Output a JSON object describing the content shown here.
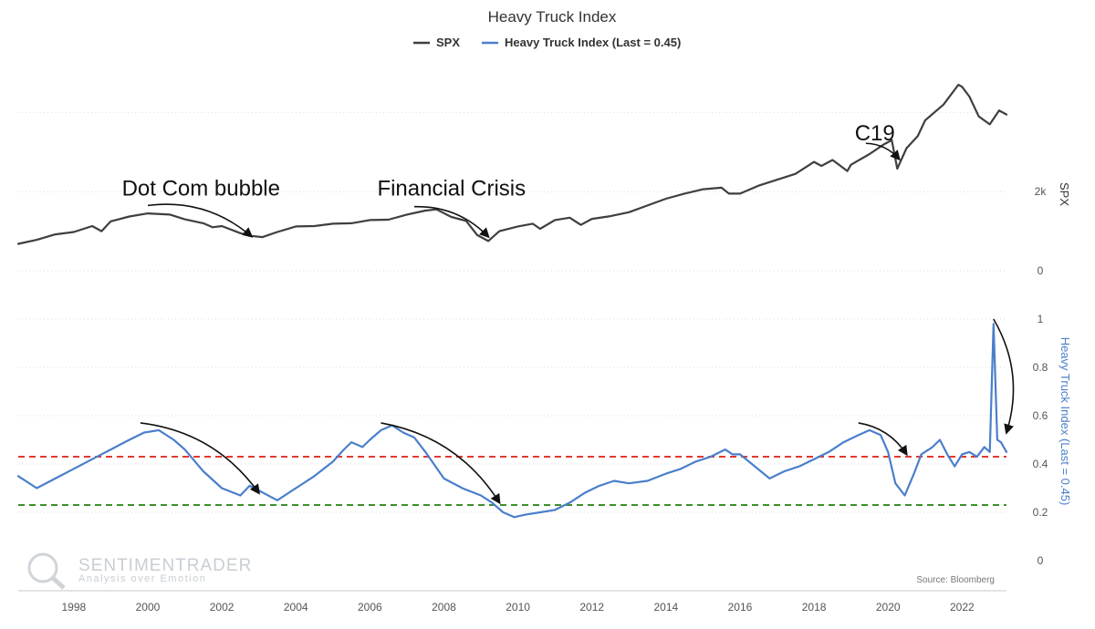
{
  "chart_data": {
    "type": "line",
    "title": "Heavy Truck Index",
    "legend": {
      "placement": "top-center",
      "entries": [
        "SPX",
        "Heavy Truck Index (Last = 0.45)"
      ]
    },
    "x_range": [
      1996.5,
      2023.2
    ],
    "x_ticks": [
      "1998",
      "2000",
      "2002",
      "2004",
      "2006",
      "2008",
      "2010",
      "2012",
      "2014",
      "2016",
      "2018",
      "2020",
      "2022"
    ],
    "panels": [
      {
        "ylabel": "SPX",
        "y_range": [
          0,
          5000
        ],
        "y_ticks": [
          {
            "value": 0,
            "label": "0"
          },
          {
            "value": 2000,
            "label": "2k"
          }
        ],
        "grid_values": [
          0,
          2000,
          4000
        ]
      },
      {
        "ylabel": "Heavy Truck Index (Last = 0.45)",
        "y_range": [
          0,
          1
        ],
        "y_ticks": [
          {
            "value": 0,
            "label": "0"
          },
          {
            "value": 0.2,
            "label": "0.2"
          },
          {
            "value": 0.4,
            "label": "0.4"
          },
          {
            "value": 0.6,
            "label": "0.6"
          },
          {
            "value": 0.8,
            "label": "0.8"
          },
          {
            "value": 1,
            "label": "1"
          }
        ],
        "grid_values": [
          0.2,
          0.4,
          0.6,
          0.8,
          1.0
        ],
        "reference_lines": [
          {
            "value": 0.43,
            "color": "#e03a2f"
          },
          {
            "value": 0.23,
            "color": "#3c8f2a"
          }
        ]
      }
    ],
    "series": [
      {
        "name": "SPX",
        "panel": 0,
        "color": "#3f3f3f",
        "x": [
          1996.5,
          1997.0,
          1997.5,
          1998.0,
          1998.5,
          1998.75,
          1999.0,
          1999.5,
          2000.0,
          2000.6,
          2001.0,
          2001.5,
          2001.75,
          2002.0,
          2002.5,
          2002.8,
          2003.1,
          2003.5,
          2004.0,
          2004.5,
          2005.0,
          2005.5,
          2006.0,
          2006.5,
          2007.0,
          2007.5,
          2007.8,
          2008.2,
          2008.6,
          2008.9,
          2009.2,
          2009.5,
          2010.0,
          2010.4,
          2010.6,
          2011.0,
          2011.4,
          2011.7,
          2012.0,
          2012.5,
          2013.0,
          2013.5,
          2014.0,
          2014.5,
          2015.0,
          2015.5,
          2015.7,
          2016.0,
          2016.5,
          2017.0,
          2017.5,
          2018.0,
          2018.2,
          2018.5,
          2018.9,
          2019.0,
          2019.5,
          2019.9,
          2020.1,
          2020.25,
          2020.5,
          2020.8,
          2021.0,
          2021.5,
          2021.9,
          2022.0,
          2022.2,
          2022.45,
          2022.75,
          2023.0,
          2023.2
        ],
        "y": [
          680,
          780,
          920,
          980,
          1130,
          1000,
          1250,
          1370,
          1450,
          1420,
          1300,
          1200,
          1100,
          1130,
          950,
          880,
          850,
          980,
          1120,
          1130,
          1190,
          1200,
          1280,
          1290,
          1420,
          1520,
          1550,
          1360,
          1260,
          900,
          750,
          1000,
          1120,
          1190,
          1060,
          1280,
          1340,
          1160,
          1310,
          1380,
          1480,
          1650,
          1820,
          1950,
          2060,
          2100,
          1950,
          1950,
          2150,
          2300,
          2450,
          2750,
          2650,
          2800,
          2520,
          2680,
          2950,
          3200,
          3300,
          2580,
          3100,
          3400,
          3800,
          4200,
          4700,
          4650,
          4400,
          3900,
          3700,
          4050,
          3950
        ]
      },
      {
        "name": "Heavy Truck Index (Last = 0.45)",
        "panel": 1,
        "color": "#4a7fcb",
        "x": [
          1996.5,
          1997.0,
          1997.5,
          1998.0,
          1998.5,
          1999.0,
          1999.5,
          1999.9,
          2000.3,
          2000.7,
          2001.0,
          2001.5,
          2002.0,
          2002.5,
          2002.75,
          2003.0,
          2003.5,
          2004.0,
          2004.5,
          2005.0,
          2005.3,
          2005.5,
          2005.8,
          2006.0,
          2006.3,
          2006.6,
          2006.9,
          2007.2,
          2007.5,
          2008.0,
          2008.5,
          2009.0,
          2009.3,
          2009.6,
          2009.9,
          2010.2,
          2010.6,
          2011.0,
          2011.4,
          2011.8,
          2012.2,
          2012.6,
          2013.0,
          2013.5,
          2014.0,
          2014.4,
          2014.8,
          2015.2,
          2015.6,
          2015.8,
          2016.0,
          2016.4,
          2016.8,
          2017.2,
          2017.6,
          2018.0,
          2018.4,
          2018.8,
          2019.2,
          2019.5,
          2019.8,
          2020.0,
          2020.2,
          2020.45,
          2020.7,
          2020.9,
          2021.2,
          2021.4,
          2021.6,
          2021.8,
          2022.0,
          2022.2,
          2022.4,
          2022.6,
          2022.75,
          2022.85,
          2022.95,
          2023.05,
          2023.2
        ],
        "y": [
          0.35,
          0.3,
          0.34,
          0.38,
          0.42,
          0.46,
          0.5,
          0.53,
          0.54,
          0.5,
          0.46,
          0.37,
          0.3,
          0.27,
          0.31,
          0.29,
          0.25,
          0.3,
          0.35,
          0.41,
          0.46,
          0.49,
          0.47,
          0.5,
          0.54,
          0.56,
          0.53,
          0.51,
          0.45,
          0.34,
          0.3,
          0.27,
          0.24,
          0.2,
          0.18,
          0.19,
          0.2,
          0.21,
          0.24,
          0.28,
          0.31,
          0.33,
          0.32,
          0.33,
          0.36,
          0.38,
          0.41,
          0.43,
          0.46,
          0.44,
          0.44,
          0.39,
          0.34,
          0.37,
          0.39,
          0.42,
          0.45,
          0.49,
          0.52,
          0.54,
          0.52,
          0.45,
          0.32,
          0.27,
          0.36,
          0.44,
          0.47,
          0.5,
          0.44,
          0.39,
          0.44,
          0.45,
          0.43,
          0.47,
          0.45,
          0.98,
          0.5,
          0.49,
          0.45
        ]
      }
    ],
    "annotations": [
      {
        "text": "Dot Com bubble",
        "panel": 0,
        "x": 1999.3,
        "y": 1900
      },
      {
        "text": "Financial Crisis",
        "panel": 0,
        "x": 2006.2,
        "y": 1900
      },
      {
        "text": "C19",
        "panel": 0,
        "x": 2019.1,
        "y": 3300
      }
    ],
    "arrows": [
      {
        "panel": 0,
        "from": [
          2000.0,
          1650
        ],
        "to": [
          2002.8,
          870
        ]
      },
      {
        "panel": 0,
        "from": [
          2007.2,
          1620
        ],
        "to": [
          2009.2,
          860
        ]
      },
      {
        "panel": 0,
        "from": [
          2019.4,
          3220
        ],
        "to": [
          2020.3,
          2820
        ]
      },
      {
        "panel": 1,
        "from": [
          1999.8,
          0.57
        ],
        "to": [
          2003.0,
          0.28
        ]
      },
      {
        "panel": 1,
        "from": [
          2006.3,
          0.57
        ],
        "to": [
          2009.5,
          0.24
        ]
      },
      {
        "panel": 1,
        "from": [
          2019.2,
          0.57
        ],
        "to": [
          2020.5,
          0.44
        ]
      },
      {
        "panel": 1,
        "from": [
          2022.85,
          1.0
        ],
        "to": [
          2023.2,
          0.53
        ]
      }
    ],
    "source": "Source: Bloomberg",
    "watermark": {
      "name": "SENTIMENTRADER",
      "tagline": "Analysis over Emotion"
    }
  }
}
